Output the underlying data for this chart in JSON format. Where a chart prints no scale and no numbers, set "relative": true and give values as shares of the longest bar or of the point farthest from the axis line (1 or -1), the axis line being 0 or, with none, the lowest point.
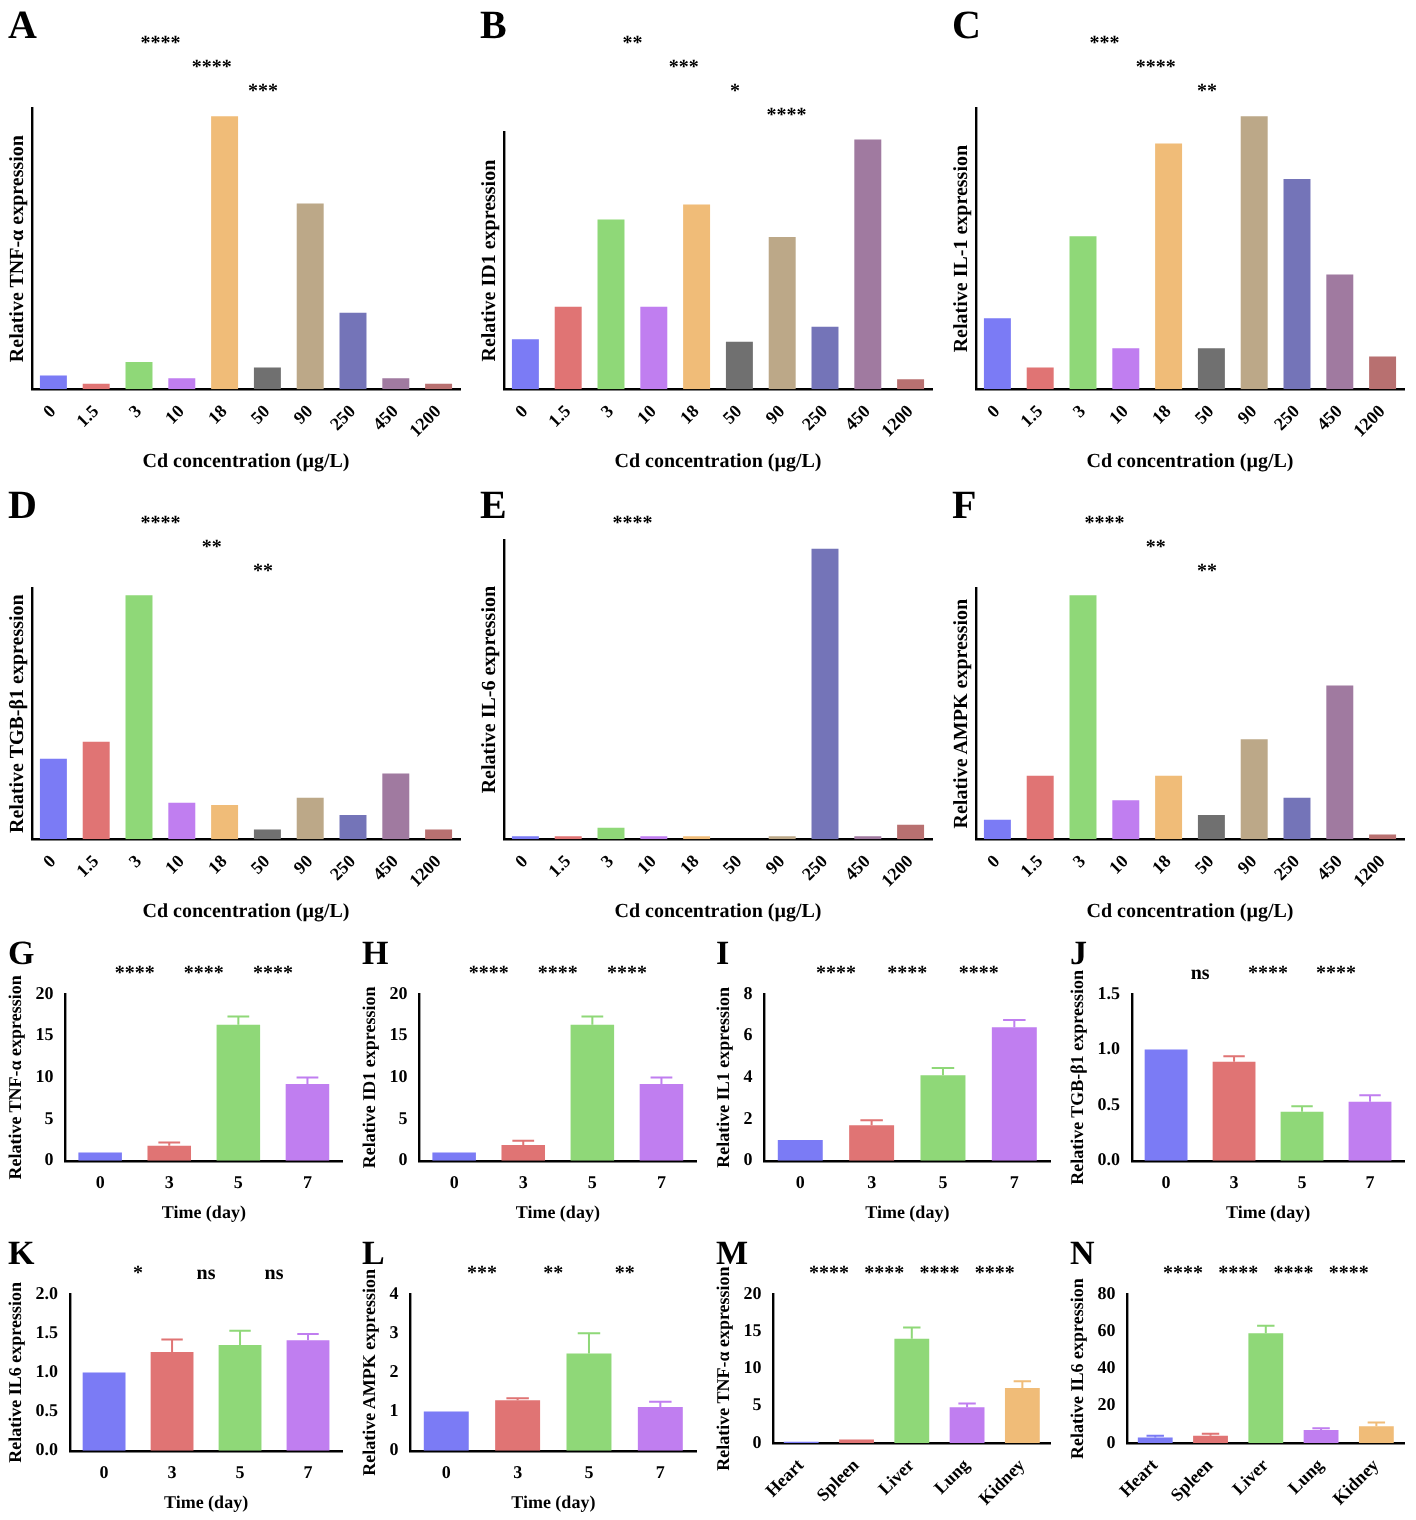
{
  "chart_data": [
    {
      "type": "bar",
      "title": "A",
      "xlabel": "Cd concentration (µg/L)",
      "ylabel": "Relative TNF-α expression",
      "relative": true,
      "categories": [
        "0",
        "1.5",
        "3",
        "10",
        "18",
        "50",
        "90",
        "250",
        "450",
        "1200"
      ],
      "values": [
        0.05,
        0.02,
        0.1,
        0.04,
        1,
        0.08,
        0.68,
        0.28,
        0.04,
        0.02
      ],
      "colors": [
        "#7b7bf5",
        "#e07474",
        "#8fd878",
        "#c07ef0",
        "#f0bc78",
        "#707070",
        "#bca888",
        "#7474b8",
        "#a07aa0",
        "#b87070"
      ],
      "annotations": [
        "****",
        "****",
        "***"
      ]
    },
    {
      "type": "bar",
      "title": "B",
      "xlabel": "Cd concentration (µg/L)",
      "ylabel": "Relative ID1 expression",
      "relative": true,
      "categories": [
        "0",
        "1.5",
        "3",
        "10",
        "18",
        "50",
        "90",
        "250",
        "450",
        "1200"
      ],
      "values": [
        0.2,
        0.33,
        0.68,
        0.33,
        0.74,
        0.19,
        0.61,
        0.25,
        1,
        0.04
      ],
      "colors": [
        "#7b7bf5",
        "#e07474",
        "#8fd878",
        "#c07ef0",
        "#f0bc78",
        "#707070",
        "#bca888",
        "#7474b8",
        "#a07aa0",
        "#b87070"
      ],
      "annotations": [
        "**",
        "***",
        "*",
        "****"
      ]
    },
    {
      "type": "bar",
      "title": "C",
      "xlabel": "Cd concentration (µg/L)",
      "ylabel": "Relative IL-1 expression",
      "relative": true,
      "categories": [
        "0",
        "1.5",
        "3",
        "10",
        "18",
        "50",
        "90",
        "250",
        "450",
        "1200"
      ],
      "values": [
        0.26,
        0.08,
        0.56,
        0.15,
        0.9,
        0.15,
        1,
        0.77,
        0.42,
        0.12
      ],
      "colors": [
        "#7b7bf5",
        "#e07474",
        "#8fd878",
        "#c07ef0",
        "#f0bc78",
        "#707070",
        "#bca888",
        "#7474b8",
        "#a07aa0",
        "#b87070"
      ],
      "annotations": [
        "***",
        "****",
        "**"
      ]
    },
    {
      "type": "bar",
      "title": "D",
      "xlabel": "Cd concentration (µg/L)",
      "ylabel": "Relative TGB-β1 expression",
      "relative": true,
      "categories": [
        "0",
        "1.5",
        "3",
        "10",
        "18",
        "50",
        "90",
        "250",
        "450",
        "1200"
      ],
      "values": [
        0.33,
        0.4,
        1,
        0.15,
        0.14,
        0.04,
        0.17,
        0.1,
        0.27,
        0.04
      ],
      "colors": [
        "#7b7bf5",
        "#e07474",
        "#8fd878",
        "#c07ef0",
        "#f0bc78",
        "#707070",
        "#bca888",
        "#7474b8",
        "#a07aa0",
        "#b87070"
      ],
      "annotations": [
        "****",
        "**",
        "**"
      ]
    },
    {
      "type": "bar",
      "title": "E",
      "xlabel": "Cd concentration (µg/L)",
      "ylabel": "Relative IL-6 expression",
      "relative": true,
      "categories": [
        "0",
        "1.5",
        "3",
        "10",
        "18",
        "50",
        "90",
        "250",
        "450",
        "1200"
      ],
      "values": [
        0.01,
        0.01,
        0.04,
        0.01,
        0.01,
        0,
        0.01,
        1,
        0.01,
        0.05
      ],
      "colors": [
        "#7b7bf5",
        "#e07474",
        "#8fd878",
        "#c07ef0",
        "#f0bc78",
        "#707070",
        "#bca888",
        "#7474b8",
        "#a07aa0",
        "#b87070"
      ],
      "annotations": [
        "****"
      ]
    },
    {
      "type": "bar",
      "title": "F",
      "xlabel": "Cd concentration (µg/L)",
      "ylabel": "Relative AMPK expression",
      "relative": true,
      "categories": [
        "0",
        "1.5",
        "3",
        "10",
        "18",
        "50",
        "90",
        "250",
        "450",
        "1200"
      ],
      "values": [
        0.08,
        0.26,
        1,
        0.16,
        0.26,
        0.1,
        0.41,
        0.17,
        0.63,
        0.02
      ],
      "colors": [
        "#7b7bf5",
        "#e07474",
        "#8fd878",
        "#c07ef0",
        "#f0bc78",
        "#707070",
        "#bca888",
        "#7474b8",
        "#a07aa0",
        "#b87070"
      ],
      "annotations": [
        "****",
        "**",
        "**"
      ]
    },
    {
      "type": "bar",
      "title": "G",
      "xlabel": "Time (day)",
      "ylabel": "Relative TNF-α expression",
      "categories": [
        "0",
        "3",
        "5",
        "7"
      ],
      "values": [
        1,
        1.8,
        16.3,
        9.2
      ],
      "errors": [
        null,
        0.4,
        1.0,
        0.8
      ],
      "colors": [
        "#7b7bf5",
        "#e07474",
        "#8fd878",
        "#c07ef0"
      ],
      "ylim": [
        0,
        20
      ],
      "yticks": [
        0,
        5,
        10,
        15,
        20
      ],
      "annotations": [
        "****",
        "****",
        "****"
      ]
    },
    {
      "type": "bar",
      "title": "H",
      "xlabel": "Time (day)",
      "ylabel": "Relative ID1 expression",
      "categories": [
        "0",
        "3",
        "5",
        "7"
      ],
      "values": [
        1,
        1.9,
        16.3,
        9.2
      ],
      "errors": [
        null,
        0.5,
        1.0,
        0.8
      ],
      "colors": [
        "#7b7bf5",
        "#e07474",
        "#8fd878",
        "#c07ef0"
      ],
      "ylim": [
        0,
        20
      ],
      "yticks": [
        0,
        5,
        10,
        15,
        20
      ],
      "annotations": [
        "****",
        "****",
        "****"
      ]
    },
    {
      "type": "bar",
      "title": "I",
      "xlabel": "Time (day)",
      "ylabel": "Relative IL1 expression",
      "categories": [
        "0",
        "3",
        "5",
        "7"
      ],
      "values": [
        1,
        1.7,
        4.1,
        6.4
      ],
      "errors": [
        null,
        0.25,
        0.35,
        0.35
      ],
      "colors": [
        "#7b7bf5",
        "#e07474",
        "#8fd878",
        "#c07ef0"
      ],
      "ylim": [
        0,
        8
      ],
      "yticks": [
        0,
        2,
        4,
        6,
        8
      ],
      "annotations": [
        "****",
        "****",
        "****"
      ]
    },
    {
      "type": "bar",
      "title": "J",
      "xlabel": "Time (day)",
      "ylabel": "Relative TGB-β1 expression",
      "categories": [
        "0",
        "3",
        "5",
        "7"
      ],
      "values": [
        1.0,
        0.89,
        0.44,
        0.53
      ],
      "errors": [
        null,
        0.05,
        0.05,
        0.06
      ],
      "colors": [
        "#7b7bf5",
        "#e07474",
        "#8fd878",
        "#c07ef0"
      ],
      "ylim": [
        0,
        1.5
      ],
      "yticks": [
        {
          "value": 0,
          "label": "0.0"
        },
        0.5,
        {
          "value": 1,
          "label": "1.0"
        },
        1.5
      ],
      "annotations": [
        "ns",
        "****",
        "****"
      ]
    },
    {
      "type": "bar",
      "title": "K",
      "xlabel": "Time (day)",
      "ylabel": "Relative IL6 expression",
      "categories": [
        "0",
        "3",
        "5",
        "7"
      ],
      "values": [
        1.0,
        1.26,
        1.35,
        1.41
      ],
      "errors": [
        null,
        0.16,
        0.18,
        0.08
      ],
      "colors": [
        "#7b7bf5",
        "#e07474",
        "#8fd878",
        "#c07ef0"
      ],
      "ylim": [
        0,
        2
      ],
      "yticks": [
        {
          "value": 0,
          "label": "0.0"
        },
        0.5,
        {
          "value": 1,
          "label": "1.0"
        },
        1.5,
        {
          "value": 2,
          "label": "2.0"
        }
      ],
      "annotations": [
        "*",
        "ns",
        "ns"
      ]
    },
    {
      "type": "bar",
      "title": "L",
      "xlabel": "Time (day)",
      "ylabel": "Relative AMPK expression",
      "categories": [
        "0",
        "3",
        "5",
        "7"
      ],
      "values": [
        1.0,
        1.29,
        2.48,
        1.12
      ],
      "errors": [
        null,
        0.05,
        0.52,
        0.13
      ],
      "colors": [
        "#7b7bf5",
        "#e07474",
        "#8fd878",
        "#c07ef0"
      ],
      "ylim": [
        0,
        4
      ],
      "yticks": [
        0,
        1,
        2,
        3,
        4
      ],
      "annotations": [
        "***",
        "**",
        "**"
      ]
    },
    {
      "type": "bar",
      "title": "M",
      "ylabel": "Relative TNF-α expression",
      "categories": [
        "Heart",
        "Spleen",
        "Liver",
        "Lung",
        "Kidney"
      ],
      "values": [
        0.2,
        0.5,
        14,
        4.8,
        7.4
      ],
      "errors": [
        null,
        null,
        1.5,
        0.5,
        0.9
      ],
      "colors": [
        "#7b7bf5",
        "#e07474",
        "#8fd878",
        "#c07ef0",
        "#f0bc78"
      ],
      "ylim": [
        0,
        20
      ],
      "yticks": [
        0,
        5,
        10,
        15,
        20
      ],
      "annotations": [
        "****",
        "****",
        "****",
        "****"
      ]
    },
    {
      "type": "bar",
      "title": "N",
      "ylabel": "Relative IL6 expression",
      "categories": [
        "Heart",
        "Spleen",
        "Liver",
        "Lung",
        "Kidney"
      ],
      "values": [
        3,
        4,
        59,
        7,
        9
      ],
      "errors": [
        1,
        1,
        4,
        1,
        2
      ],
      "colors": [
        "#7b7bf5",
        "#e07474",
        "#8fd878",
        "#c07ef0",
        "#f0bc78"
      ],
      "ylim": [
        0,
        80
      ],
      "yticks": [
        0,
        20,
        40,
        60,
        80
      ],
      "annotations": [
        "****",
        "****",
        "****",
        "****"
      ]
    }
  ]
}
